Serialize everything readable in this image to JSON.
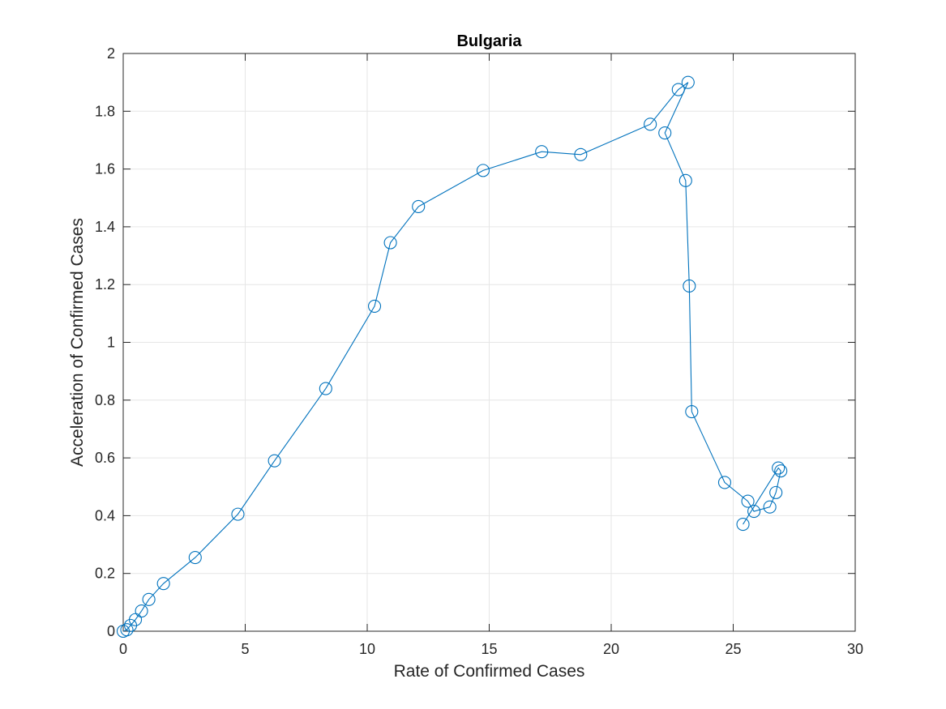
{
  "chart_data": {
    "type": "scatter",
    "title": "Bulgaria",
    "xlabel": "Rate of Confirmed Cases",
    "ylabel": "Acceleration of Confirmed Cases",
    "xlim": [
      0,
      30
    ],
    "ylim": [
      0,
      2
    ],
    "xticks": [
      "0",
      "5",
      "10",
      "15",
      "20",
      "25",
      "30"
    ],
    "yticks": [
      "0",
      "0.2",
      "0.4",
      "0.6",
      "0.8",
      "1",
      "1.2",
      "1.4",
      "1.6",
      "1.8",
      "2"
    ],
    "grid": true,
    "marker": "circle",
    "connected": true,
    "series_color": "#0072BD",
    "series": [
      {
        "x": [
          0,
          0.15,
          0.3,
          0.5,
          0.75,
          1.05,
          1.65,
          2.95,
          4.7,
          6.2,
          8.3,
          10.3,
          10.95,
          12.1,
          14.75,
          17.15,
          18.75,
          21.6,
          22.75,
          23.15,
          22.2,
          23.05,
          23.2,
          23.3,
          24.65,
          25.6,
          25.85,
          26.5,
          26.75,
          26.95,
          26.85,
          25.4
        ],
        "y": [
          0,
          0.005,
          0.02,
          0.04,
          0.07,
          0.11,
          0.165,
          0.255,
          0.405,
          0.59,
          0.84,
          1.125,
          1.345,
          1.47,
          1.595,
          1.66,
          1.65,
          1.755,
          1.875,
          1.9,
          1.725,
          1.56,
          1.195,
          0.76,
          0.515,
          0.45,
          0.415,
          0.43,
          0.48,
          0.555,
          0.565,
          0.37
        ]
      }
    ]
  }
}
